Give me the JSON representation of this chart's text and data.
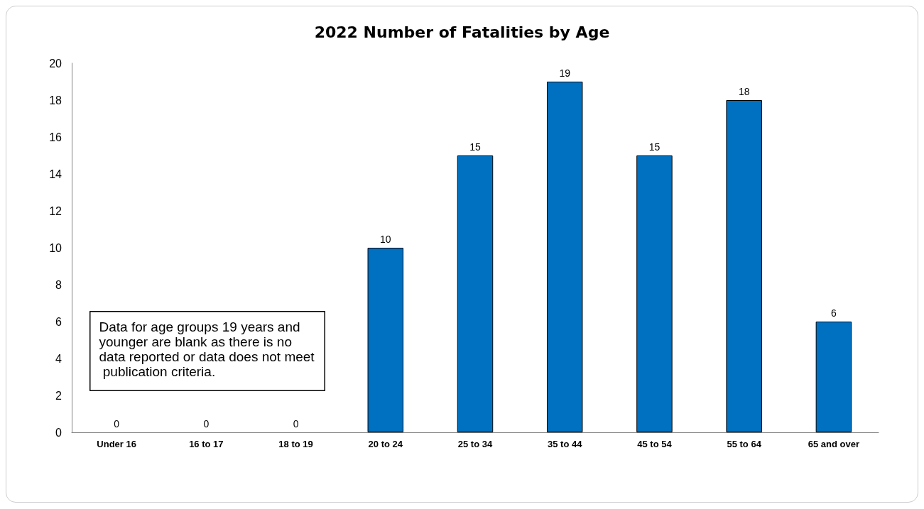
{
  "chart_data": {
    "type": "bar",
    "title": "2022 Number of Fatalities by Age",
    "categories": [
      "Under 16",
      "16 to 17",
      "18 to 19",
      "20 to 24",
      "25 to 34",
      "35 to 44",
      "45 to 54",
      "55 to 64",
      "65 and over"
    ],
    "values": [
      0,
      0,
      0,
      10,
      15,
      19,
      15,
      18,
      6
    ],
    "color": "#0070c0",
    "ylim": [
      0,
      20
    ],
    "yticks": [
      0,
      2,
      4,
      6,
      8,
      10,
      12,
      14,
      16,
      18,
      20
    ],
    "grid": false,
    "data_labels": true,
    "annotations": [
      "Data for age groups 19 years and younger are blank as there is no data reported or data does not meet publication criteria."
    ]
  }
}
